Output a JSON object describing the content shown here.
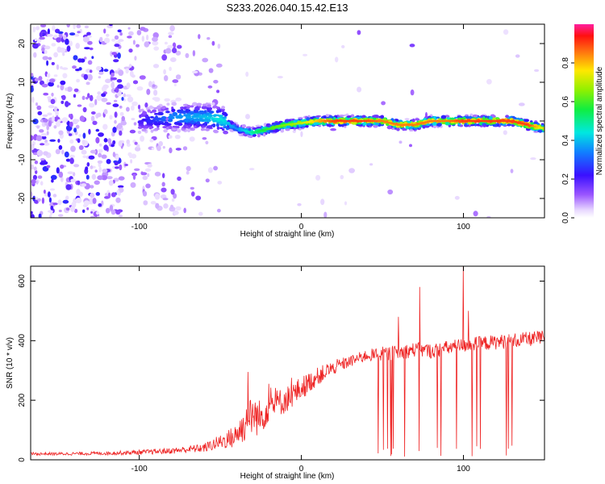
{
  "title": "S233.2026.040.15.42.E13",
  "colors": {
    "snr_line": "#ee2222",
    "frame": "#000000",
    "background": "#ffffff"
  },
  "chart_data": [
    {
      "type": "heatmap",
      "name": "spectrogram",
      "xlabel": "Height of straight line (km)",
      "ylabel": "Frequency (Hz)",
      "xlim": [
        -167,
        150
      ],
      "ylim": [
        -25,
        25
      ],
      "x_ticks": [
        -100,
        0,
        100
      ],
      "y_ticks": [
        -20,
        -10,
        0,
        10,
        20
      ],
      "x_tick_labels": [
        "-100",
        "0",
        "100"
      ],
      "y_tick_labels": [
        "-20",
        "-10",
        "0",
        "10",
        "20"
      ],
      "colorbar": {
        "label": "Normalized spectral amplitude",
        "range": [
          0,
          1
        ],
        "ticks": [
          0.0,
          0.2,
          0.4,
          0.6,
          0.8
        ],
        "tick_labels": [
          "0.0",
          "0.2",
          "0.4",
          "0.6",
          "0.8"
        ]
      },
      "signal_track": {
        "x": [
          -100,
          -80,
          -60,
          -50,
          -40,
          -30,
          -20,
          -10,
          0,
          10,
          20,
          40,
          50,
          60,
          70,
          80,
          90,
          100,
          110,
          120,
          130,
          140,
          150
        ],
        "freq": [
          0,
          1,
          1,
          0.5,
          -2,
          -3,
          -2,
          -1,
          -0.5,
          0,
          0,
          0,
          0,
          -1,
          -1,
          0,
          0,
          0,
          0,
          0,
          0,
          -1,
          -2
        ],
        "peak_amplitude": [
          0.2,
          0.35,
          0.4,
          0.45,
          0.35,
          0.5,
          0.6,
          0.65,
          0.7,
          0.8,
          0.9,
          0.9,
          0.85,
          0.85,
          0.85,
          0.85,
          0.85,
          0.9,
          0.9,
          0.9,
          0.9,
          0.9,
          0.7
        ]
      }
    },
    {
      "type": "line",
      "name": "snr",
      "xlabel": "Height of straight line (km)",
      "ylabel": "SNR (10 * v/v)",
      "xlim": [
        -167,
        150
      ],
      "ylim": [
        0,
        650
      ],
      "x_ticks": [
        -100,
        0,
        100
      ],
      "y_ticks": [
        0,
        200,
        400,
        600
      ],
      "x_tick_labels": [
        "-100",
        "0",
        "100"
      ],
      "y_tick_labels": [
        "0",
        "200",
        "400",
        "600"
      ],
      "x": [
        -167,
        -150,
        -120,
        -100,
        -80,
        -60,
        -50,
        -40,
        -35,
        -30,
        -25,
        -20,
        -10,
        0,
        10,
        20,
        30,
        40,
        50,
        60,
        70,
        80,
        90,
        100,
        110,
        120,
        130,
        140,
        150
      ],
      "y": [
        20,
        20,
        22,
        25,
        30,
        40,
        60,
        80,
        120,
        150,
        140,
        180,
        200,
        240,
        280,
        310,
        330,
        350,
        355,
        360,
        370,
        365,
        375,
        385,
        390,
        395,
        400,
        405,
        410
      ],
      "noise_amplitude": [
        5,
        5,
        6,
        8,
        10,
        15,
        25,
        40,
        60,
        70,
        60,
        50,
        45,
        40,
        30,
        25,
        20,
        20,
        25,
        25,
        25,
        25,
        25,
        25,
        25,
        25,
        25,
        25,
        25
      ],
      "spikes": [
        {
          "x": -33,
          "y": 295
        },
        {
          "x": -20,
          "y": 255
        },
        {
          "x": 60,
          "y": 480
        },
        {
          "x": 73,
          "y": 580
        },
        {
          "x": 100,
          "y": 650
        },
        {
          "x": 103,
          "y": 500
        }
      ],
      "dropout_range": [
        47,
        131
      ]
    }
  ]
}
